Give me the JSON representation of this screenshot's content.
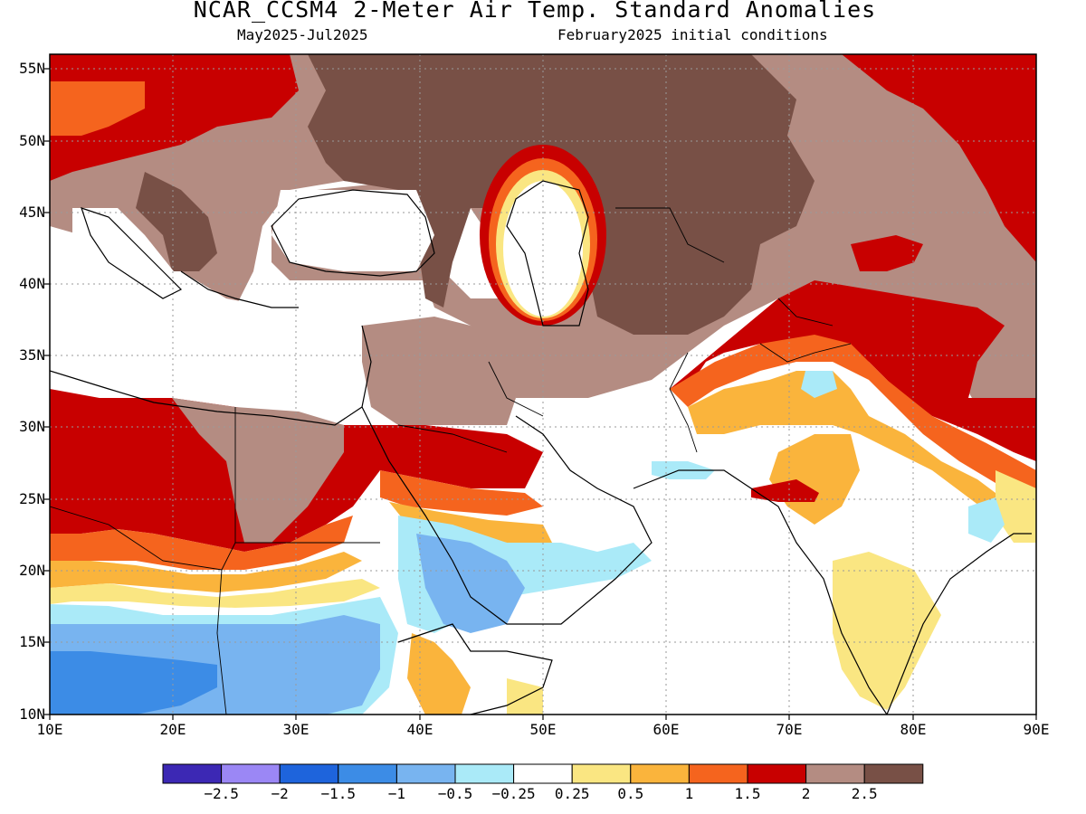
{
  "header": {
    "title": "NCAR_CCSM4 2-Meter Air Temp. Standard Anomalies",
    "period": "May2025-Jul2025",
    "init": "February2025 initial conditions"
  },
  "axes": {
    "lat_labels": [
      "55N",
      "50N",
      "45N",
      "40N",
      "35N",
      "30N",
      "25N",
      "20N",
      "15N",
      "10N"
    ],
    "lon_labels": [
      "10E",
      "20E",
      "30E",
      "40E",
      "50E",
      "60E",
      "70E",
      "80E",
      "90E"
    ]
  },
  "colorbar": {
    "colors": [
      "#3c28b4",
      "#9b87f5",
      "#1e64dc",
      "#3c8ce6",
      "#78b4f0",
      "#aaeaf8",
      "#ffffff",
      "#fae682",
      "#fab43c",
      "#f5641e",
      "#c80000",
      "#b48c82",
      "#785046"
    ],
    "labels": [
      "−2.5",
      "−2",
      "−1.5",
      "−1",
      "−0.5",
      "−0.25",
      "0.25",
      "0.5",
      "1",
      "1.5",
      "2",
      "2.5"
    ]
  },
  "chart_data": {
    "type": "heatmap",
    "title": "NCAR_CCSM4 2-Meter Air Temp. Standard Anomalies",
    "subtitle": "May2025-Jul2025 · February2025 initial conditions",
    "x_range": [
      10,
      90
    ],
    "y_range": [
      10,
      56
    ],
    "levels": [
      -2.5,
      -2,
      -1.5,
      -1,
      -0.5,
      -0.25,
      0.25,
      0.5,
      1,
      1.5,
      2,
      2.5
    ],
    "grid": true
  }
}
